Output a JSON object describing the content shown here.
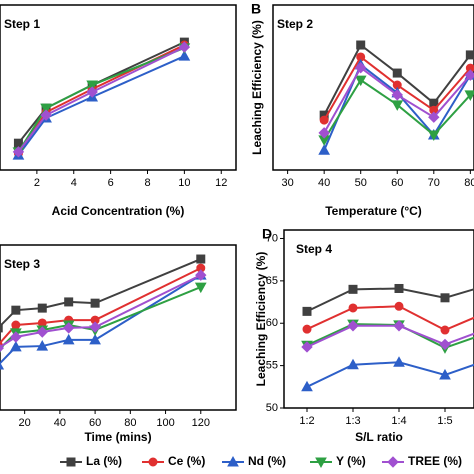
{
  "chart_data": [
    {
      "type": "line",
      "panel_label": null,
      "annotation": "Step 1",
      "xlabel": "Acid Concentration (%)",
      "ylabel": null,
      "x": [
        1,
        2.5,
        5,
        10
      ],
      "xlim": [
        0,
        12.8
      ],
      "xticks": [
        2,
        4,
        6,
        8,
        10,
        12
      ],
      "ylim": [
        40,
        80
      ],
      "series": [
        {
          "name": "La (%)",
          "color": "#404040",
          "marker": "square",
          "values": [
            46.5,
            55,
            60.6,
            71
          ]
        },
        {
          "name": "Ce (%)",
          "color": "#e03030",
          "marker": "circle",
          "values": [
            44,
            54,
            59.6,
            70.3
          ]
        },
        {
          "name": "Nd (%)",
          "color": "#2d5fc8",
          "marker": "triangle-up",
          "values": [
            43.6,
            52.6,
            57.7,
            67.6
          ]
        },
        {
          "name": "Y (%)",
          "color": "#2ea043",
          "marker": "triangle-down",
          "values": [
            44.4,
            55,
            60.6,
            69.6
          ]
        },
        {
          "name": "TREE (%)",
          "color": "#a050d0",
          "marker": "diamond",
          "values": [
            44.4,
            53.3,
            58.9,
            69.8
          ]
        }
      ]
    },
    {
      "type": "line",
      "panel_label": "B",
      "annotation": "Step 2",
      "xlabel": "Temperature (°C)",
      "ylabel": "Leaching Efficiency (%)",
      "x": [
        40,
        50,
        60,
        70,
        80
      ],
      "xlim": [
        26,
        81
      ],
      "xticks": [
        30,
        40,
        50,
        60,
        70,
        80
      ],
      "ylim": [
        40,
        80
      ],
      "series": [
        {
          "name": "La (%)",
          "color": "#404040",
          "marker": "square",
          "values": [
            53.3,
            70.3,
            63.5,
            56.2,
            67.9
          ]
        },
        {
          "name": "Ce (%)",
          "color": "#e03030",
          "marker": "circle",
          "values": [
            52.1,
            67.4,
            60.6,
            54.5,
            64.7
          ]
        },
        {
          "name": "Nd (%)",
          "color": "#2d5fc8",
          "marker": "triangle-up",
          "values": [
            44.8,
            65.5,
            58.7,
            48.5,
            63
          ]
        },
        {
          "name": "Y (%)",
          "color": "#2ea043",
          "marker": "triangle-down",
          "values": [
            47.3,
            61.8,
            55.8,
            48.5,
            58.2
          ]
        },
        {
          "name": "TREE (%)",
          "color": "#a050d0",
          "marker": "diamond",
          "values": [
            49,
            64.8,
            58.2,
            52.8,
            63
          ]
        }
      ]
    },
    {
      "type": "line",
      "panel_label": null,
      "annotation": "Step 3",
      "xlabel": "Time (mins)",
      "ylabel": null,
      "x": [
        5,
        15,
        30,
        45,
        60,
        120
      ],
      "xlim": [
        6,
        140
      ],
      "xticks": [
        20,
        40,
        60,
        80,
        100,
        120
      ],
      "ylim": [
        40,
        80
      ],
      "series": [
        {
          "name": "La (%)",
          "color": "#404040",
          "marker": "square",
          "values": [
            59.9,
            64.2,
            64.7,
            66.2,
            65.9,
            76.6
          ]
        },
        {
          "name": "Ce (%)",
          "color": "#e03030",
          "marker": "circle",
          "values": [
            55.8,
            60.6,
            61.1,
            61.8,
            61.8,
            74.4
          ]
        },
        {
          "name": "Nd (%)",
          "color": "#2d5fc8",
          "marker": "triangle-up",
          "values": [
            50.9,
            55.3,
            55.5,
            57,
            57,
            72.7
          ]
        },
        {
          "name": "Y (%)",
          "color": "#2ea043",
          "marker": "triangle-down",
          "values": [
            54.5,
            58.7,
            59.4,
            60.6,
            59.4,
            69.8
          ]
        },
        {
          "name": "TREE (%)",
          "color": "#a050d0",
          "marker": "diamond",
          "values": [
            55,
            57.7,
            58.9,
            59.9,
            60.1,
            72.7
          ]
        }
      ]
    },
    {
      "type": "line",
      "panel_label": "D",
      "annotation": "Step 4",
      "xlabel": "S/L ratio",
      "ylabel": "Leaching Efficiency (%)",
      "categories": [
        "1:2",
        "1:3",
        "1:4",
        "1:5",
        null
      ],
      "ylim": [
        50,
        71
      ],
      "yticks": [
        50,
        55,
        60,
        65,
        70
      ],
      "series": [
        {
          "name": "La (%)",
          "color": "#404040",
          "marker": "square",
          "values": [
            61.4,
            64,
            64.1,
            63,
            64.6
          ]
        },
        {
          "name": "Ce (%)",
          "color": "#e03030",
          "marker": "circle",
          "values": [
            59.3,
            61.8,
            62,
            59.2,
            61.5
          ]
        },
        {
          "name": "Nd (%)",
          "color": "#2d5fc8",
          "marker": "triangle-up",
          "values": [
            52.5,
            55.1,
            55.4,
            53.9,
            55.8
          ]
        },
        {
          "name": "Y (%)",
          "color": "#2ea043",
          "marker": "triangle-down",
          "values": [
            57.4,
            59.9,
            59.8,
            57.1,
            59
          ]
        },
        {
          "name": "TREE (%)",
          "color": "#a050d0",
          "marker": "diamond",
          "values": [
            57.2,
            59.7,
            59.7,
            57.5,
            59.5
          ]
        }
      ]
    }
  ]
}
